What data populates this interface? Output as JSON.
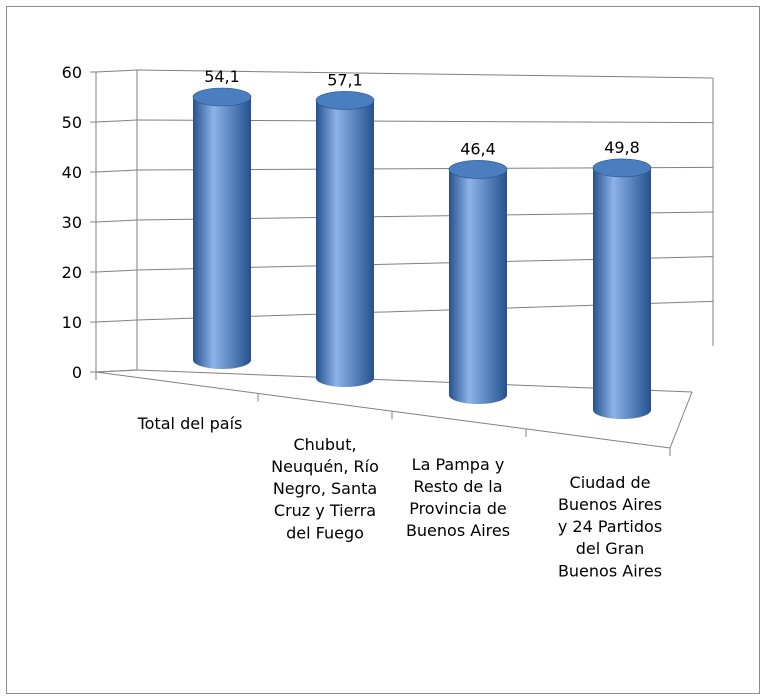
{
  "chart_data": {
    "type": "bar",
    "style": "3d-cylinder",
    "categories": [
      [
        "Total del país"
      ],
      [
        "Chubut,",
        "Neuquén, Río",
        "Negro, Santa",
        "Cruz y Tierra",
        "del Fuego"
      ],
      [
        "La Pampa y",
        "Resto de la",
        "Provincia de",
        "Buenos Aires"
      ],
      [
        "Ciudad de",
        "Buenos Aires",
        "y 24 Partidos",
        "del Gran",
        "Buenos Aires"
      ]
    ],
    "values": [
      54.1,
      57.1,
      46.4,
      49.8
    ],
    "data_labels": [
      "54,1",
      "57,1",
      "46,4",
      "49,8"
    ],
    "ylim": [
      0,
      60
    ],
    "yticks": [
      0,
      10,
      20,
      30,
      40,
      50,
      60
    ],
    "grid": true,
    "legend": "none",
    "bar_color": "#4a7ebf",
    "bar_color_dark": "#24528f",
    "bar_color_light": "#8db3e8"
  }
}
